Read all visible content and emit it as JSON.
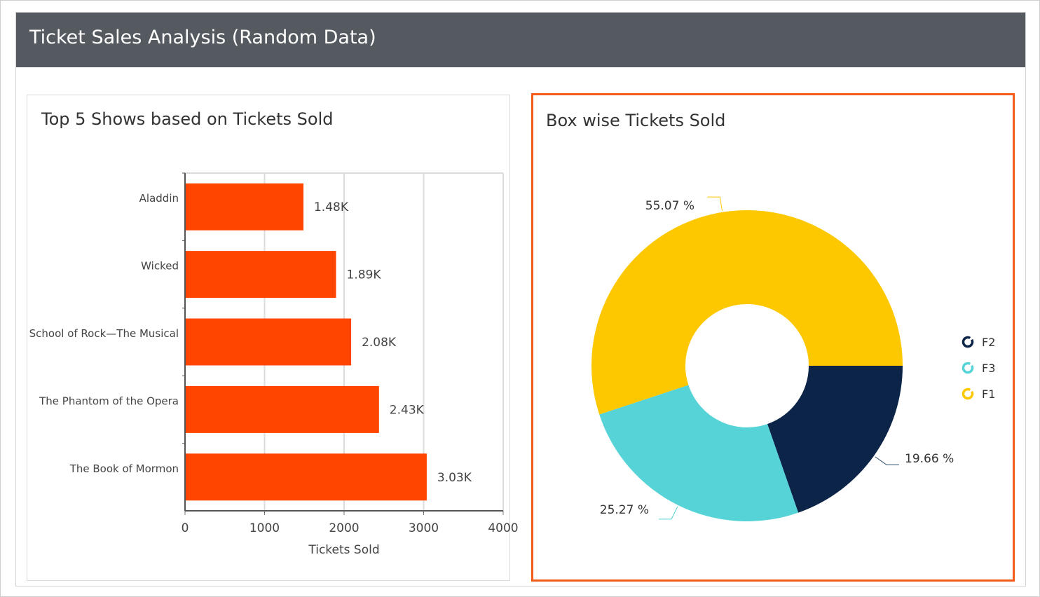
{
  "header": {
    "title": "Ticket Sales Analysis (Random Data)"
  },
  "colors": {
    "header_bg": "#555a61",
    "bar": "#ff4500",
    "highlight_border": "#f25c19"
  },
  "chart_data": [
    {
      "type": "bar",
      "orientation": "horizontal",
      "title": "Top 5 Shows based on Tickets Sold",
      "xlabel": "Tickets Sold",
      "ylabel": "",
      "xlim": [
        0,
        4000
      ],
      "x_ticks": [
        "0",
        "1000",
        "2000",
        "3000",
        "4000"
      ],
      "grid": true,
      "categories": [
        "Aladdin",
        "Wicked",
        "School of Rock—The Musical",
        "The Phantom of the Opera",
        "The Book of Mormon"
      ],
      "values": [
        1480,
        1890,
        2080,
        2430,
        3030
      ],
      "data_labels": [
        "1.48K",
        "1.89K",
        "2.08K",
        "2.43K",
        "3.03K"
      ],
      "color": "#ff4500"
    },
    {
      "type": "pie",
      "donut": true,
      "title": "Box wise Tickets Sold",
      "legend_position": "right",
      "slices": [
        {
          "name": "F2",
          "value": 19.66,
          "label": "19.66 %",
          "color": "#0b2447"
        },
        {
          "name": "F3",
          "value": 25.27,
          "label": "25.27 %",
          "color": "#56d3d6"
        },
        {
          "name": "F1",
          "value": 55.07,
          "label": "55.07 %",
          "color": "#fdc800"
        }
      ]
    }
  ]
}
